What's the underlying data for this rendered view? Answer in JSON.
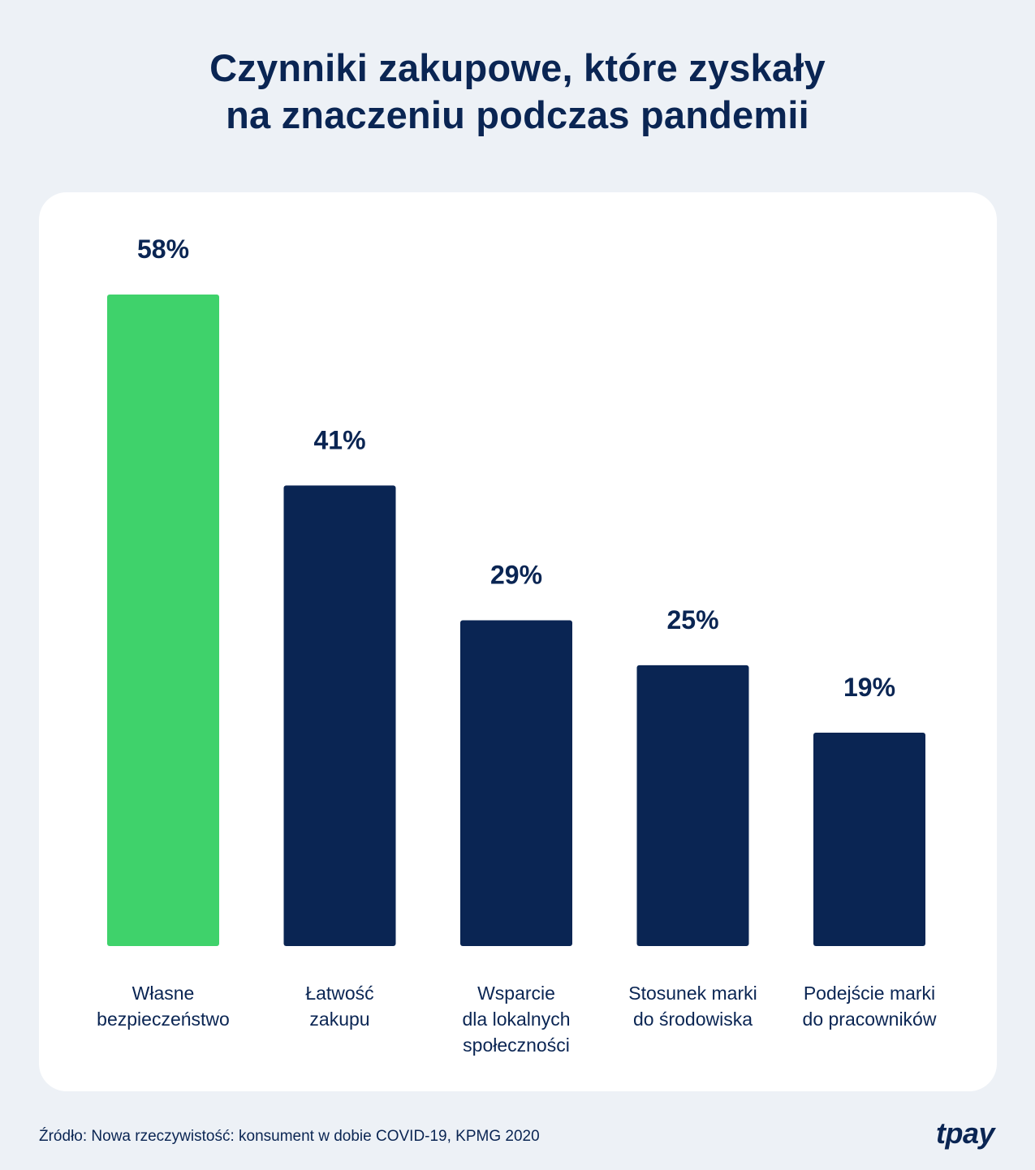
{
  "chart_data": {
    "type": "bar",
    "title": [
      "Czynniki zakupowe, które zyskały",
      "na znaczeniu podczas pandemii"
    ],
    "unit": "%",
    "categories": [
      [
        "Własne",
        "bezpieczeństwo"
      ],
      [
        "Łatwość",
        "zakupu"
      ],
      [
        "Wsparcie",
        "dla lokalnych",
        "społeczności"
      ],
      [
        "Stosunek marki",
        "do środowiska"
      ],
      [
        "Podejście marki",
        "do pracowników"
      ]
    ],
    "values": [
      58,
      41,
      29,
      25,
      19
    ],
    "value_labels": [
      "58%",
      "41%",
      "29%",
      "25%",
      "19%"
    ],
    "highlight_index": 0,
    "colors": {
      "highlight": "#3fd26b",
      "bar": "#0a2553",
      "text": "#0a2553"
    },
    "xlabel": "",
    "ylabel": "",
    "ylim": [
      0,
      58
    ]
  },
  "source": "Źródło: Nowa rzeczywistość: konsument w dobie COVID-19, KPMG 2020",
  "brand": "tpay"
}
